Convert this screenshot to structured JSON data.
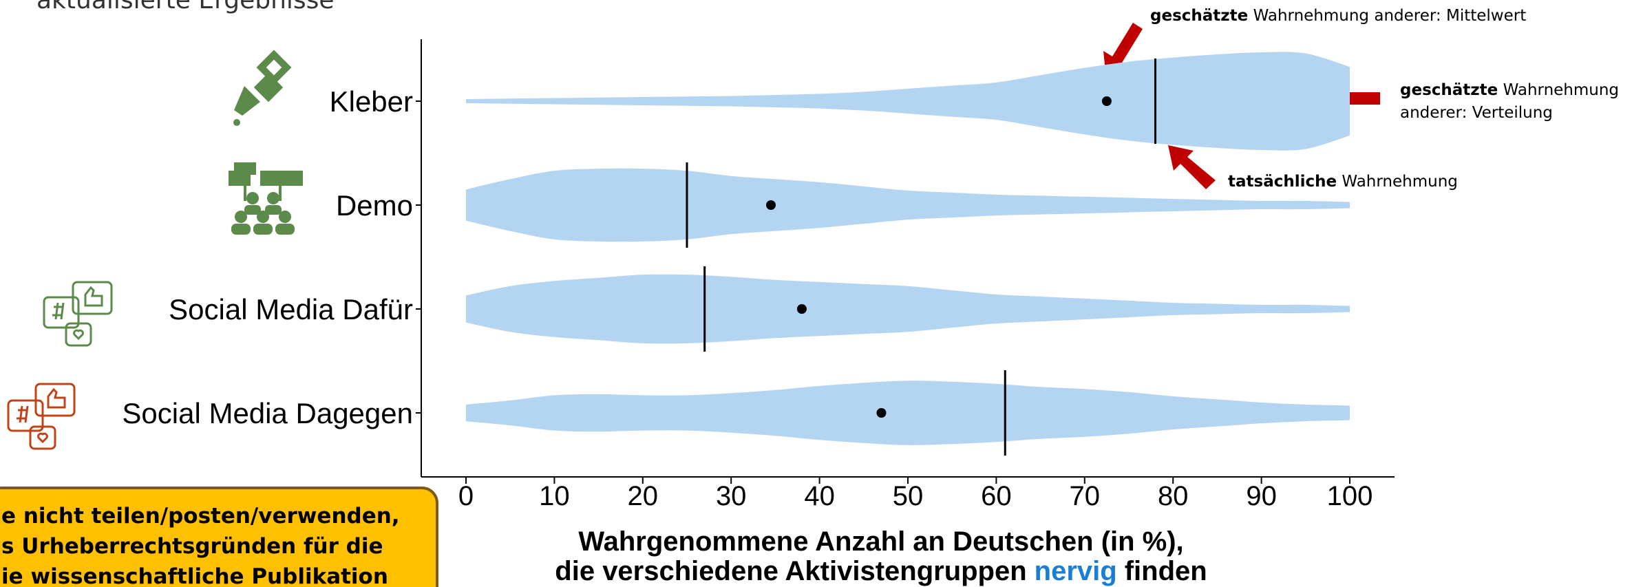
{
  "header": {
    "subtitle": "aktualisierte Ergebnisse"
  },
  "notice": {
    "lines": [
      "e nicht teilen/posten/verwenden,",
      "s Urheberrechtsgründen für die",
      "ie wissenschaftliche Publikation"
    ]
  },
  "chart_data": {
    "type": "violin",
    "categories": [
      "Kleber",
      "Demo",
      "Social Media Dafür",
      "Social Media Dagegen"
    ],
    "color": "#b3d5f2",
    "means": [
      72.5,
      34.5,
      38,
      47
    ],
    "actual": [
      78,
      25,
      27,
      61
    ],
    "violin_x": [
      0,
      5,
      10,
      15,
      20,
      25,
      30,
      35,
      40,
      45,
      50,
      55,
      60,
      65,
      70,
      75,
      80,
      85,
      90,
      95,
      100
    ],
    "densities": [
      [
        2,
        2.5,
        3,
        3.5,
        4,
        4.5,
        5,
        6,
        7,
        9,
        12,
        15,
        18,
        25,
        32,
        38,
        42,
        45,
        47,
        46,
        33
      ],
      [
        15,
        25,
        33,
        35,
        35,
        33,
        28,
        25,
        22,
        18,
        14,
        12,
        10,
        9,
        8,
        7,
        6,
        5,
        4,
        4,
        3
      ],
      [
        13,
        22,
        27,
        30,
        33,
        33,
        31,
        28,
        26,
        24,
        22,
        18,
        14,
        12,
        10,
        8,
        6,
        5,
        4,
        4,
        3
      ],
      [
        8,
        12,
        17,
        18,
        17,
        17,
        19,
        22,
        26,
        29,
        31,
        30,
        28,
        25,
        23,
        20,
        16,
        13,
        10,
        8,
        7
      ]
    ],
    "xlim": [
      0,
      100
    ],
    "xticks": [
      0,
      10,
      20,
      30,
      40,
      50,
      60,
      70,
      80,
      90,
      100
    ],
    "xlabel": {
      "line1": "Wahrgenommene Anzahl an Deutschen (in %),",
      "line2": [
        "die verschiedene Aktivistengruppen",
        "nervig",
        "finden"
      ]
    },
    "annotations": [
      {
        "bold": "geschätzte",
        "text": "Wahrnehmung anderer: Mittelwert"
      },
      {
        "bold": "geschätzte",
        "text": "Wahrnehmung",
        "text2": "anderer: Verteilung"
      },
      {
        "bold": "tatsächliche",
        "text": "Wahrnehmung"
      }
    ]
  }
}
